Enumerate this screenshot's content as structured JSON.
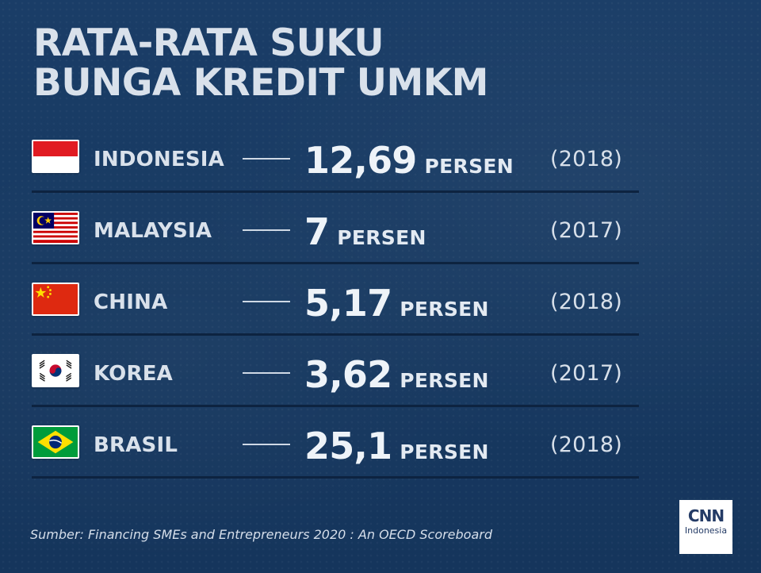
{
  "title": {
    "line1": "RATA-RATA SUKU",
    "line2": "BUNGA KREDIT UMKM"
  },
  "chart_data": {
    "type": "table",
    "title": "RATA-RATA SUKU BUNGA KREDIT UMKM",
    "unit": "PERSEN",
    "columns": [
      "country",
      "value",
      "unit",
      "year"
    ],
    "rows": [
      {
        "country": "INDONESIA",
        "flag_icon": "indonesia-flag-icon",
        "value": "12,69",
        "value_number": 12.69,
        "unit": "PERSEN",
        "year": "(2018)"
      },
      {
        "country": "MALAYSIA",
        "flag_icon": "malaysia-flag-icon",
        "value": "7",
        "value_number": 7,
        "unit": "PERSEN",
        "year": "(2017)"
      },
      {
        "country": "CHINA",
        "flag_icon": "china-flag-icon",
        "value": "5,17",
        "value_number": 5.17,
        "unit": "PERSEN",
        "year": "(2018)"
      },
      {
        "country": "KOREA",
        "flag_icon": "korea-flag-icon",
        "value": "3,62",
        "value_number": 3.62,
        "unit": "PERSEN",
        "year": "(2017)"
      },
      {
        "country": "BRASIL",
        "flag_icon": "brazil-flag-icon",
        "value": "25,1",
        "value_number": 25.1,
        "unit": "PERSEN",
        "year": "(2018)"
      }
    ]
  },
  "source": "Sumber: Financing SMEs and Entrepreneurs 2020 : An OECD Scoreboard",
  "logo": {
    "mark": "CNN",
    "sub": "Indonesia"
  },
  "colors": {
    "background": "#183a63",
    "title": "#d9e1eb",
    "row_divider": "#0d2340",
    "text": "#eef3f8"
  }
}
